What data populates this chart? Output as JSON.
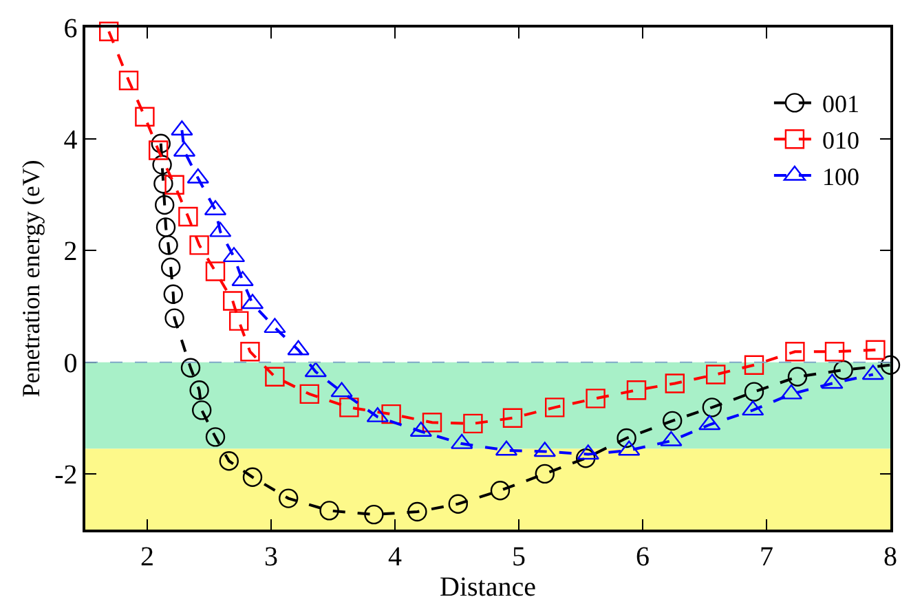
{
  "chart_data": {
    "type": "line",
    "xlabel": "Distance",
    "ylabel": "Penetration energy (eV)",
    "xlim": [
      1.5,
      8
    ],
    "ylim": [
      -3,
      6
    ],
    "xticks": [
      2,
      3,
      4,
      5,
      6,
      7,
      8
    ],
    "yticks": [
      -2,
      0,
      2,
      4,
      6
    ],
    "grid": false,
    "legend": "top right",
    "line_style": "dashed",
    "ref_lines": [
      {
        "axis": "y",
        "value": 0,
        "color": "#7fa8c8",
        "line_style": "dashed"
      }
    ],
    "bands": [
      {
        "axis": "y",
        "from": -1.55,
        "to": 0,
        "color": "#a8f0c8"
      },
      {
        "axis": "y",
        "from": -3,
        "to": -1.55,
        "color": "#fdf98a"
      }
    ],
    "series": [
      {
        "name": "001",
        "color": "#000000",
        "marker": "circle",
        "x": [
          2.11,
          2.12,
          2.13,
          2.14,
          2.15,
          2.17,
          2.19,
          2.21,
          2.22,
          2.35,
          2.42,
          2.44,
          2.55,
          2.66,
          2.85,
          3.14,
          3.47,
          3.83,
          4.18,
          4.51,
          4.85,
          5.21,
          5.54,
          5.87,
          6.24,
          6.56,
          6.9,
          7.25,
          7.62,
          8.0
        ],
        "values": [
          3.92,
          3.54,
          3.2,
          2.82,
          2.42,
          2.1,
          1.7,
          1.22,
          0.79,
          -0.1,
          -0.5,
          -0.86,
          -1.34,
          -1.77,
          -2.06,
          -2.44,
          -2.66,
          -2.73,
          -2.68,
          -2.54,
          -2.3,
          -2.0,
          -1.72,
          -1.36,
          -1.05,
          -0.81,
          -0.53,
          -0.26,
          -0.14,
          -0.05
        ]
      },
      {
        "name": "010",
        "color": "#ff0000",
        "marker": "square",
        "x": [
          1.69,
          1.85,
          1.98,
          2.09,
          2.22,
          2.33,
          2.42,
          2.55,
          2.69,
          2.74,
          2.83,
          3.03,
          3.31,
          3.63,
          3.97,
          4.3,
          4.63,
          4.95,
          5.29,
          5.62,
          5.95,
          6.26,
          6.59,
          6.9,
          7.23,
          7.55,
          7.88
        ],
        "values": [
          5.93,
          5.05,
          4.4,
          3.8,
          3.18,
          2.61,
          2.1,
          1.63,
          1.1,
          0.74,
          0.19,
          -0.26,
          -0.57,
          -0.81,
          -0.93,
          -1.08,
          -1.1,
          -1.0,
          -0.81,
          -0.65,
          -0.5,
          -0.38,
          -0.22,
          -0.05,
          0.19,
          0.19,
          0.22
        ]
      },
      {
        "name": "100",
        "color": "#0000ff",
        "marker": "triangle",
        "x": [
          2.28,
          2.3,
          2.41,
          2.55,
          2.59,
          2.7,
          2.77,
          2.85,
          3.03,
          3.22,
          3.36,
          3.57,
          3.86,
          4.21,
          4.54,
          4.9,
          5.21,
          5.56,
          5.89,
          6.23,
          6.54,
          6.89,
          7.2,
          7.53,
          7.86
        ],
        "values": [
          4.16,
          3.78,
          3.3,
          2.73,
          2.34,
          1.89,
          1.46,
          1.05,
          0.62,
          0.22,
          -0.17,
          -0.53,
          -0.98,
          -1.24,
          -1.46,
          -1.58,
          -1.6,
          -1.65,
          -1.58,
          -1.41,
          -1.12,
          -0.86,
          -0.57,
          -0.38,
          -0.22
        ]
      }
    ]
  }
}
